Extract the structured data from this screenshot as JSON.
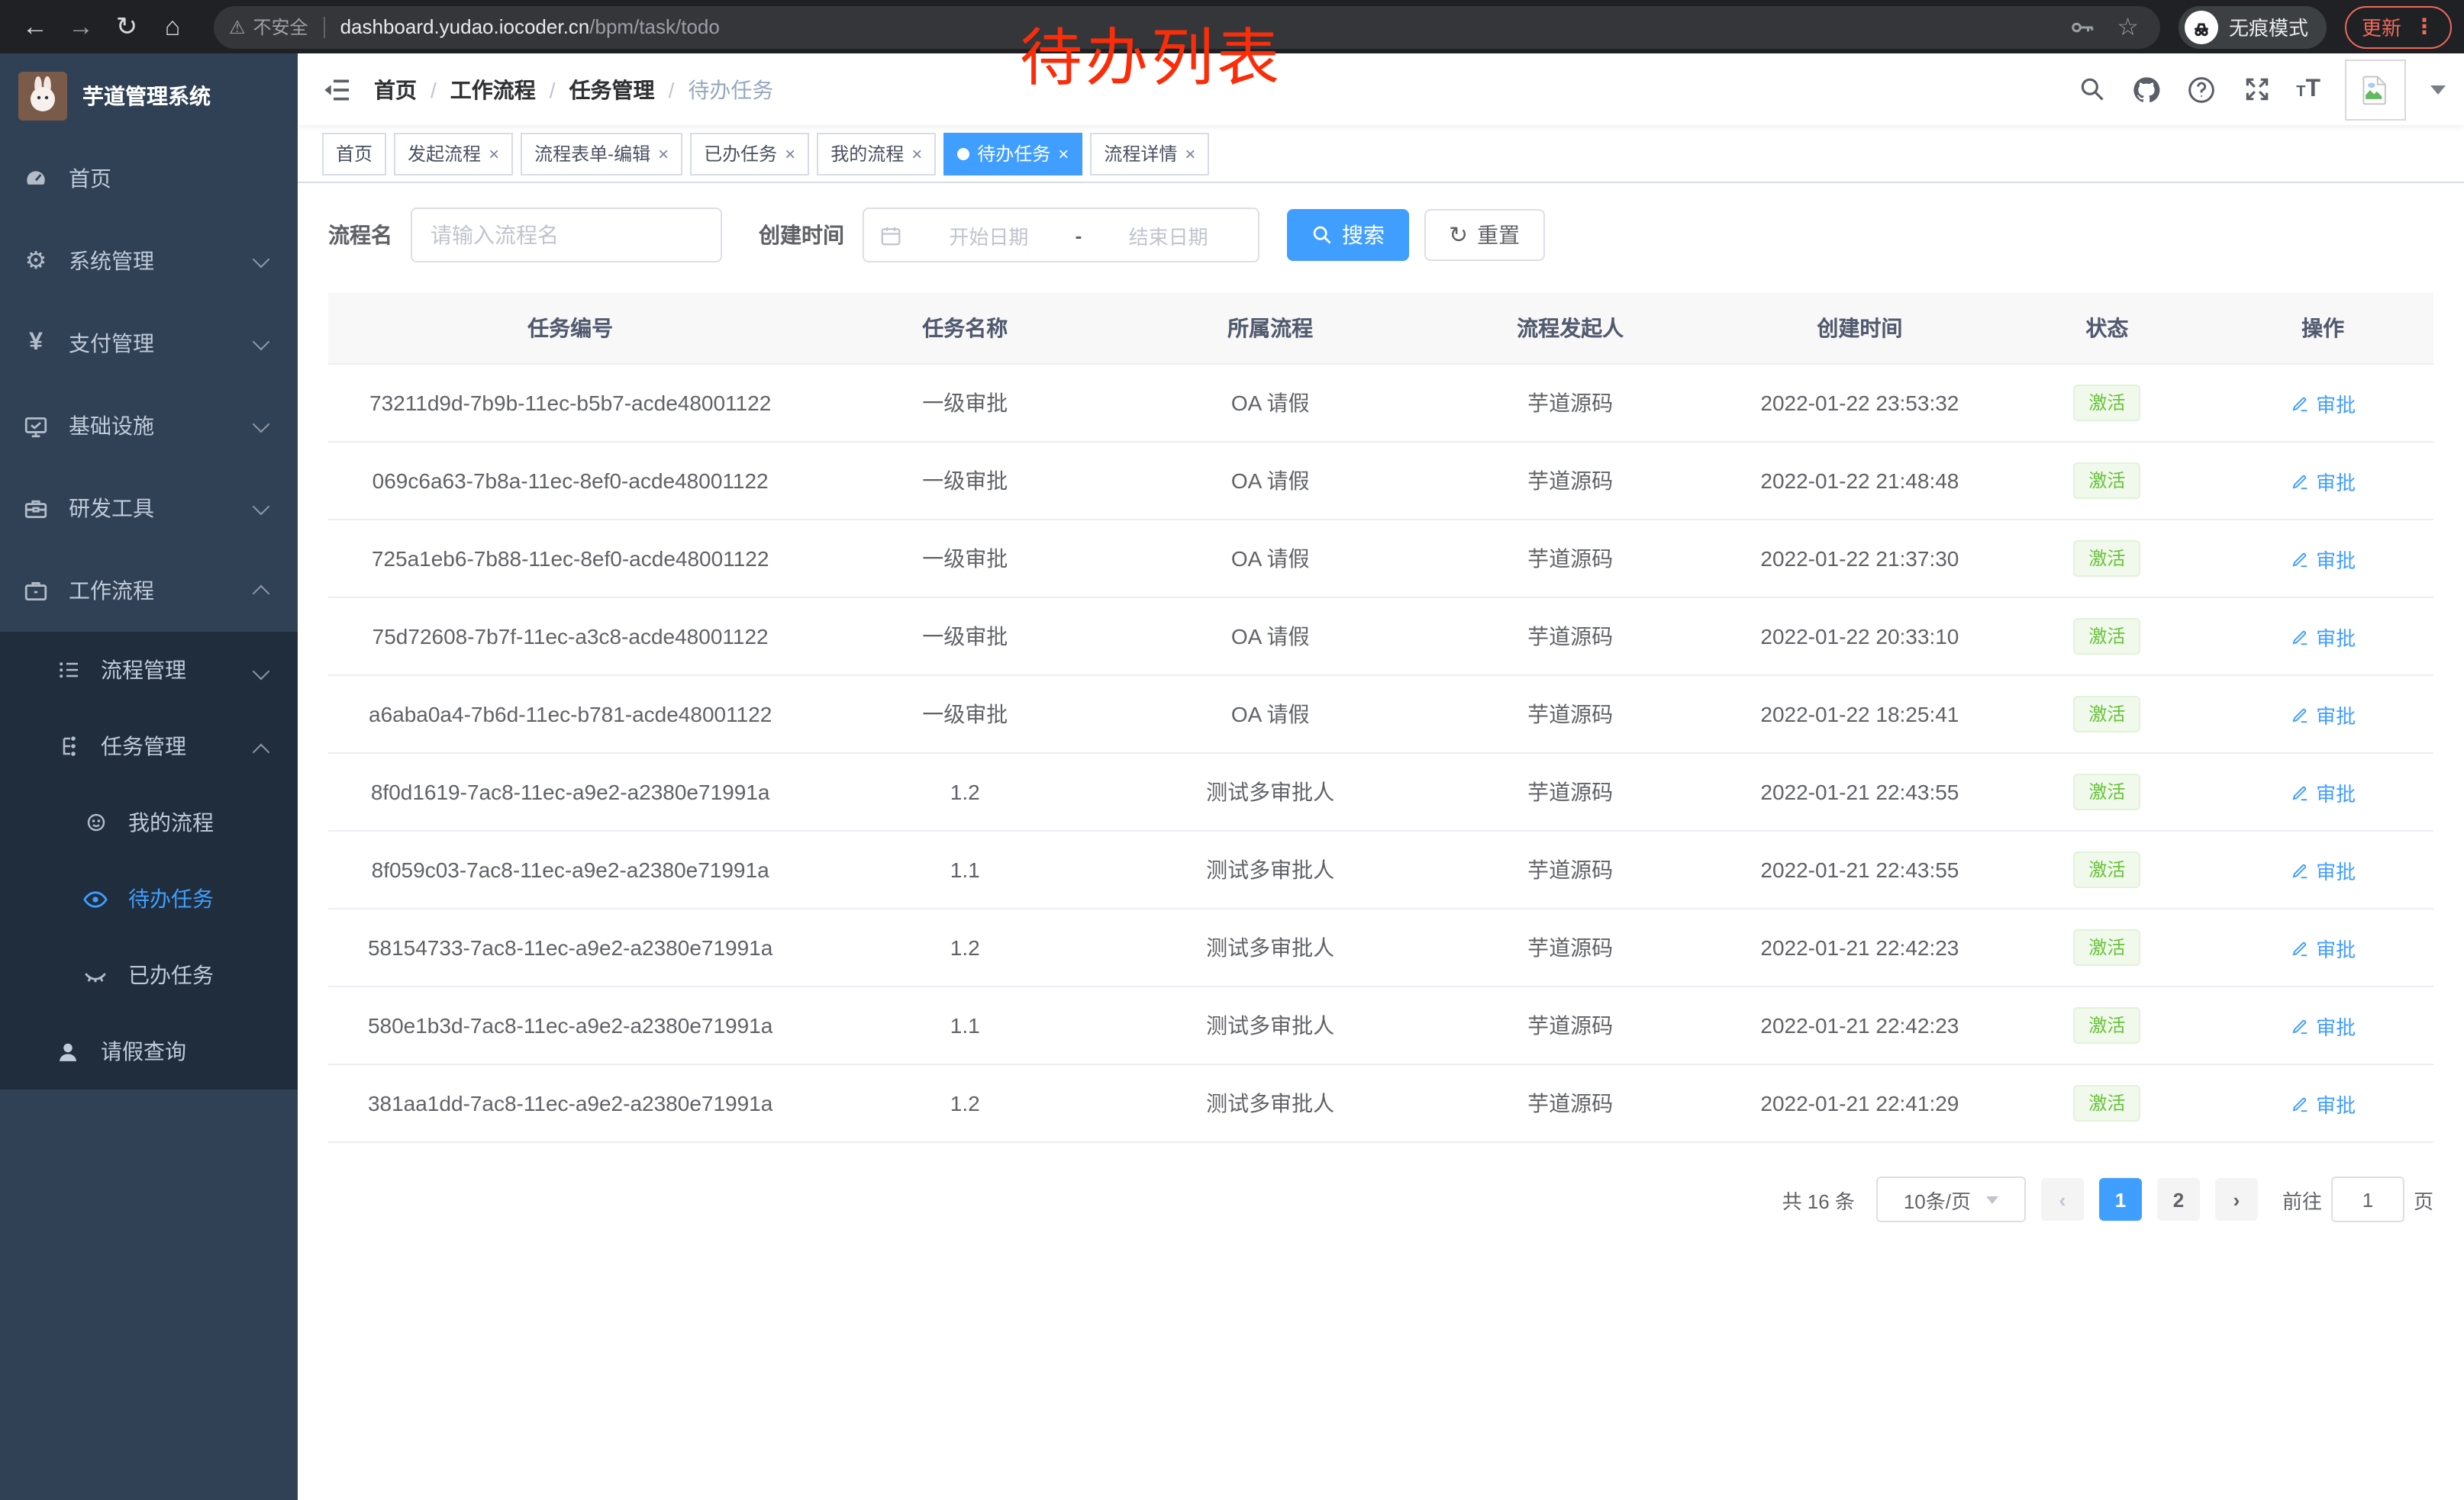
{
  "colors": {
    "accent": "#409eff",
    "success": "#67c23a",
    "sidebar_bg": "#304156",
    "submenu_bg": "#1f2d3d",
    "annotation": "#fb2d09",
    "update_button": "#ee6a5a",
    "browser_bar": "#202124"
  },
  "browser": {
    "back_glyph": "←",
    "forward_glyph": "→",
    "reload_glyph": "↻",
    "home_glyph": "⌂",
    "warning_glyph": "⚠",
    "security_label": "不安全",
    "url_host": "dashboard.yudao.iocoder.cn",
    "url_path": "/bpm/task/todo",
    "star_glyph": "☆",
    "incognito_label": "无痕模式",
    "update_label": "更新",
    "menu_dots": "⋮"
  },
  "annotation": {
    "text": "待办列表"
  },
  "sidebar": {
    "title": "芋道管理系统",
    "items": [
      {
        "label": "首页",
        "icon": "dashboard-icon"
      },
      {
        "label": "系统管理",
        "icon": "gear-icon",
        "chevron": "down"
      },
      {
        "label": "支付管理",
        "icon": "yen-icon",
        "chevron": "down"
      },
      {
        "label": "基础设施",
        "icon": "monitor-icon",
        "chevron": "down"
      },
      {
        "label": "研发工具",
        "icon": "toolbox-icon",
        "chevron": "down"
      },
      {
        "label": "工作流程",
        "icon": "briefcase-icon",
        "chevron": "up"
      },
      {
        "label": "流程管理",
        "icon": "list-icon",
        "chevron": "down"
      },
      {
        "label": "任务管理",
        "icon": "tree-icon",
        "chevron": "up"
      },
      {
        "label": "我的流程",
        "icon": "face-icon"
      },
      {
        "label": "待办任务",
        "icon": "eye-icon",
        "active": true
      },
      {
        "label": "已办任务",
        "icon": "eye-closed-icon"
      },
      {
        "label": "请假查询",
        "icon": "person-icon"
      }
    ],
    "gear_glyph": "⚙",
    "yen_glyph": "¥"
  },
  "header": {
    "breadcrumb": [
      "首页",
      "工作流程",
      "任务管理",
      "待办任务"
    ],
    "separator": "/"
  },
  "tabs": [
    {
      "label": "首页"
    },
    {
      "label": "发起流程"
    },
    {
      "label": "流程表单-编辑"
    },
    {
      "label": "已办任务"
    },
    {
      "label": "我的流程"
    },
    {
      "label": "待办任务",
      "active": true
    },
    {
      "label": "流程详情"
    }
  ],
  "ui": {
    "close_glyph": "×",
    "reset_glyph": "↻"
  },
  "filters": {
    "name_label": "流程名",
    "name_placeholder": "请输入流程名",
    "time_label": "创建时间",
    "start_placeholder": "开始日期",
    "range_separator": "-",
    "end_placeholder": "结束日期",
    "search_label": "搜索",
    "reset_label": "重置"
  },
  "table": {
    "columns": [
      "任务编号",
      "任务名称",
      "所属流程",
      "流程发起人",
      "创建时间",
      "状态",
      "操作"
    ],
    "rows": [
      {
        "id": "73211d9d-7b9b-11ec-b5b7-acde48001122",
        "name": "一级审批",
        "process": "OA 请假",
        "starter": "芋道源码",
        "created": "2022-01-22 23:53:32",
        "status": "激活",
        "action": "审批"
      },
      {
        "id": "069c6a63-7b8a-11ec-8ef0-acde48001122",
        "name": "一级审批",
        "process": "OA 请假",
        "starter": "芋道源码",
        "created": "2022-01-22 21:48:48",
        "status": "激活",
        "action": "审批"
      },
      {
        "id": "725a1eb6-7b88-11ec-8ef0-acde48001122",
        "name": "一级审批",
        "process": "OA 请假",
        "starter": "芋道源码",
        "created": "2022-01-22 21:37:30",
        "status": "激活",
        "action": "审批"
      },
      {
        "id": "75d72608-7b7f-11ec-a3c8-acde48001122",
        "name": "一级审批",
        "process": "OA 请假",
        "starter": "芋道源码",
        "created": "2022-01-22 20:33:10",
        "status": "激活",
        "action": "审批"
      },
      {
        "id": "a6aba0a4-7b6d-11ec-b781-acde48001122",
        "name": "一级审批",
        "process": "OA 请假",
        "starter": "芋道源码",
        "created": "2022-01-22 18:25:41",
        "status": "激活",
        "action": "审批"
      },
      {
        "id": "8f0d1619-7ac8-11ec-a9e2-a2380e71991a",
        "name": "1.2",
        "process": "测试多审批人",
        "starter": "芋道源码",
        "created": "2022-01-21 22:43:55",
        "status": "激活",
        "action": "审批"
      },
      {
        "id": "8f059c03-7ac8-11ec-a9e2-a2380e71991a",
        "name": "1.1",
        "process": "测试多审批人",
        "starter": "芋道源码",
        "created": "2022-01-21 22:43:55",
        "status": "激活",
        "action": "审批"
      },
      {
        "id": "58154733-7ac8-11ec-a9e2-a2380e71991a",
        "name": "1.2",
        "process": "测试多审批人",
        "starter": "芋道源码",
        "created": "2022-01-21 22:42:23",
        "status": "激活",
        "action": "审批"
      },
      {
        "id": "580e1b3d-7ac8-11ec-a9e2-a2380e71991a",
        "name": "1.1",
        "process": "测试多审批人",
        "starter": "芋道源码",
        "created": "2022-01-21 22:42:23",
        "status": "激活",
        "action": "审批"
      },
      {
        "id": "381aa1dd-7ac8-11ec-a9e2-a2380e71991a",
        "name": "1.2",
        "process": "测试多审批人",
        "starter": "芋道源码",
        "created": "2022-01-21 22:41:29",
        "status": "激活",
        "action": "审批"
      }
    ]
  },
  "pagination": {
    "total": "共 16 条",
    "page_size": "10条/页",
    "prev": "‹",
    "pages": [
      "1",
      "2"
    ],
    "active_page": "1",
    "next": "›",
    "goto_label": "前往",
    "goto_value": "1",
    "goto_suffix": "页"
  }
}
